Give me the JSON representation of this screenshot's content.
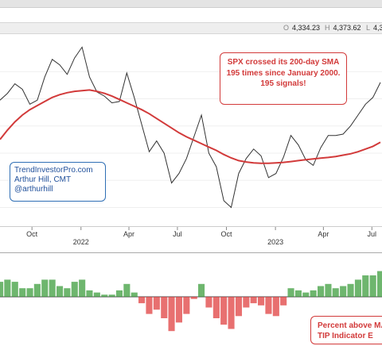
{
  "ohlc": {
    "open_label": "O",
    "open_value": "4,334.23",
    "high_label": "H",
    "high_value": "4,373.62",
    "low_label": "L",
    "low_value": "4,3"
  },
  "annotations": {
    "sma_note": [
      "SPX crossed its 200-day SMA",
      "195 times since January 2000.",
      "195 signals!"
    ],
    "credit": [
      "TrendInvestorPro.com",
      "Arthur Hill, CMT",
      "@arthurhill"
    ],
    "indicator_note": [
      "Percent above MA",
      "TIP Indicator E"
    ]
  },
  "chart_data": [
    {
      "type": "line",
      "title": "",
      "xlabel": "",
      "ylabel": "",
      "x_ticks": [
        "Oct",
        "2022",
        "Apr",
        "Jul",
        "Oct",
        "2023",
        "Apr",
        "Jul"
      ],
      "x": [
        "2021-08-02",
        "2021-08-16",
        "2021-08-30",
        "2021-09-13",
        "2021-09-27",
        "2021-10-11",
        "2021-10-25",
        "2021-11-08",
        "2021-11-22",
        "2021-12-06",
        "2021-12-20",
        "2022-01-03",
        "2022-01-17",
        "2022-01-31",
        "2022-02-14",
        "2022-02-28",
        "2022-03-14",
        "2022-03-28",
        "2022-04-11",
        "2022-04-25",
        "2022-05-09",
        "2022-05-23",
        "2022-06-06",
        "2022-06-20",
        "2022-07-04",
        "2022-07-18",
        "2022-08-01",
        "2022-08-15",
        "2022-08-29",
        "2022-09-12",
        "2022-09-26",
        "2022-10-10",
        "2022-10-24",
        "2022-11-07",
        "2022-11-21",
        "2022-12-05",
        "2022-12-19",
        "2023-01-02",
        "2023-01-16",
        "2023-01-30",
        "2023-02-13",
        "2023-02-27",
        "2023-03-13",
        "2023-03-27",
        "2023-04-10",
        "2023-04-24",
        "2023-05-08",
        "2023-05-22",
        "2023-06-05",
        "2023-06-19",
        "2023-07-03",
        "2023-07-17"
      ],
      "series": [
        {
          "values": [
            4390,
            4440,
            4510,
            4470,
            4360,
            4390,
            4560,
            4690,
            4650,
            4580,
            4700,
            4780,
            4560,
            4450,
            4420,
            4370,
            4380,
            4590,
            4410,
            4210,
            4010,
            4090,
            4000,
            3780,
            3850,
            3960,
            4120,
            4280,
            4000,
            3900,
            3650,
            3600,
            3850,
            3960,
            4030,
            3980,
            3820,
            3850,
            3970,
            4130,
            4060,
            3950,
            3910,
            4040,
            4130,
            4130,
            4140,
            4200,
            4280,
            4360,
            4410,
            4520
          ],
          "color": "#333333"
        },
        {
          "values": [
            4100,
            4170,
            4230,
            4280,
            4320,
            4350,
            4380,
            4410,
            4430,
            4445,
            4455,
            4460,
            4465,
            4455,
            4440,
            4420,
            4395,
            4370,
            4345,
            4320,
            4290,
            4255,
            4220,
            4185,
            4150,
            4120,
            4095,
            4070,
            4045,
            4020,
            3990,
            3965,
            3945,
            3935,
            3928,
            3925,
            3925,
            3928,
            3932,
            3938,
            3945,
            3952,
            3958,
            3963,
            3968,
            3975,
            3985,
            3995,
            4010,
            4030,
            4050,
            4080
          ],
          "color": "#d23a3a"
        }
      ]
    },
    {
      "type": "bar",
      "title": "",
      "x": [
        "2021-08-02",
        "2021-08-16",
        "2021-08-30",
        "2021-09-13",
        "2021-09-27",
        "2021-10-11",
        "2021-10-25",
        "2021-11-08",
        "2021-11-22",
        "2021-12-06",
        "2021-12-20",
        "2022-01-03",
        "2022-01-17",
        "2022-01-31",
        "2022-02-14",
        "2022-02-28",
        "2022-03-14",
        "2022-03-28",
        "2022-04-11",
        "2022-04-25",
        "2022-05-09",
        "2022-05-23",
        "2022-06-06",
        "2022-06-20",
        "2022-07-04",
        "2022-07-18",
        "2022-08-01",
        "2022-08-15",
        "2022-08-29",
        "2022-09-12",
        "2022-09-26",
        "2022-10-10",
        "2022-10-24",
        "2022-11-07",
        "2022-11-21",
        "2022-12-05",
        "2022-12-19",
        "2023-01-02",
        "2023-01-16",
        "2023-01-30",
        "2023-02-13",
        "2023-02-27",
        "2023-03-13",
        "2023-03-27",
        "2023-04-10",
        "2023-04-24",
        "2023-05-08",
        "2023-05-22",
        "2023-06-05",
        "2023-06-19",
        "2023-07-03",
        "2023-07-17"
      ],
      "values": [
        7,
        8,
        7,
        4,
        4,
        6,
        8,
        8,
        5,
        4,
        7,
        8,
        3,
        2,
        1,
        1,
        3,
        6,
        2,
        -3,
        -8,
        -6,
        -10,
        -16,
        -12,
        -8,
        -1,
        6,
        -5,
        -10,
        -13,
        -15,
        -9,
        -5,
        -3,
        -4,
        -8,
        -9,
        -4,
        4,
        3,
        2,
        3,
        5,
        6,
        4,
        5,
        6,
        8,
        10,
        10,
        12
      ],
      "color_positive": "#3e9e3e",
      "color_negative": "#e04040"
    }
  ]
}
